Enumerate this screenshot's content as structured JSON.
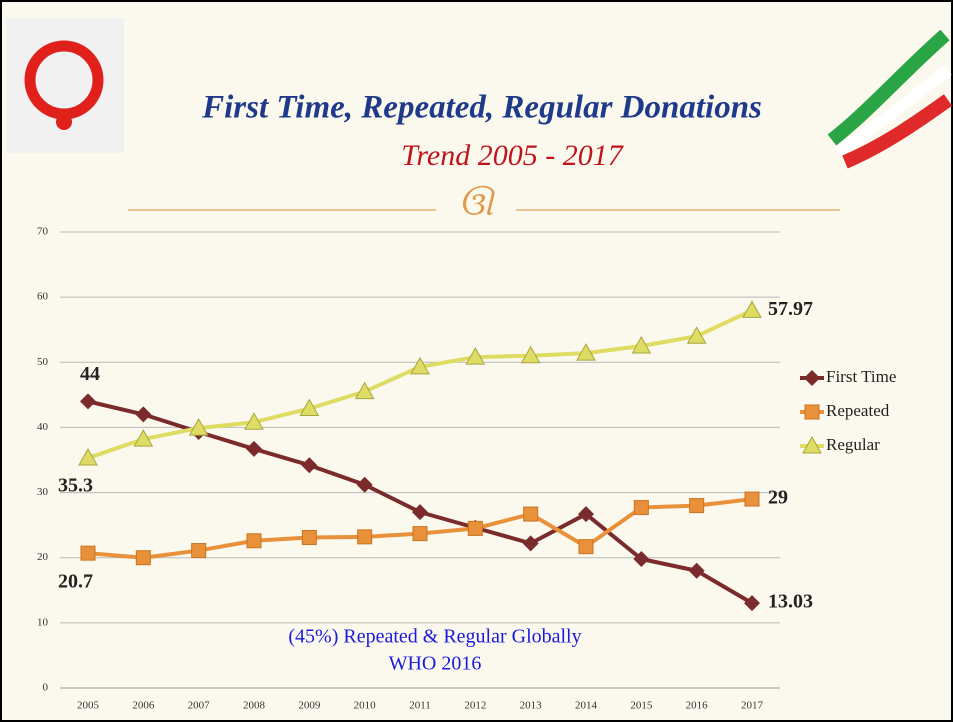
{
  "chart_data": {
    "type": "line",
    "title": "First Time, Repeated, Regular Donations",
    "subtitle": "Trend 2005 - 2017",
    "annotations": [
      "(45%) Repeated & Regular Globally",
      "WHO 2016"
    ],
    "categories": [
      "2005",
      "2006",
      "2007",
      "2008",
      "2009",
      "2010",
      "2011",
      "2012",
      "2013",
      "2014",
      "2015",
      "2016",
      "2017"
    ],
    "series": [
      {
        "name": "First Time",
        "color": "#7b2b2b",
        "values": [
          44,
          42,
          39.3,
          36.7,
          34.2,
          31.2,
          27,
          24.6,
          22.2,
          26.7,
          19.8,
          18,
          13.03
        ]
      },
      {
        "name": "Repeated",
        "color": "#e8913a",
        "values": [
          20.7,
          20,
          21.1,
          22.6,
          23.1,
          23.2,
          23.7,
          24.5,
          26.7,
          21.7,
          27.7,
          28,
          29
        ]
      },
      {
        "name": "Regular",
        "color": "#dedc62",
        "values": [
          35.3,
          38.2,
          39.9,
          40.8,
          42.9,
          45.5,
          49.3,
          50.8,
          51,
          51.4,
          52.5,
          54,
          57.97
        ]
      }
    ],
    "ylim": [
      0,
      70
    ],
    "yticks": [
      0,
      10,
      20,
      30,
      40,
      50,
      60,
      70
    ],
    "grid": true,
    "legend": "right"
  }
}
